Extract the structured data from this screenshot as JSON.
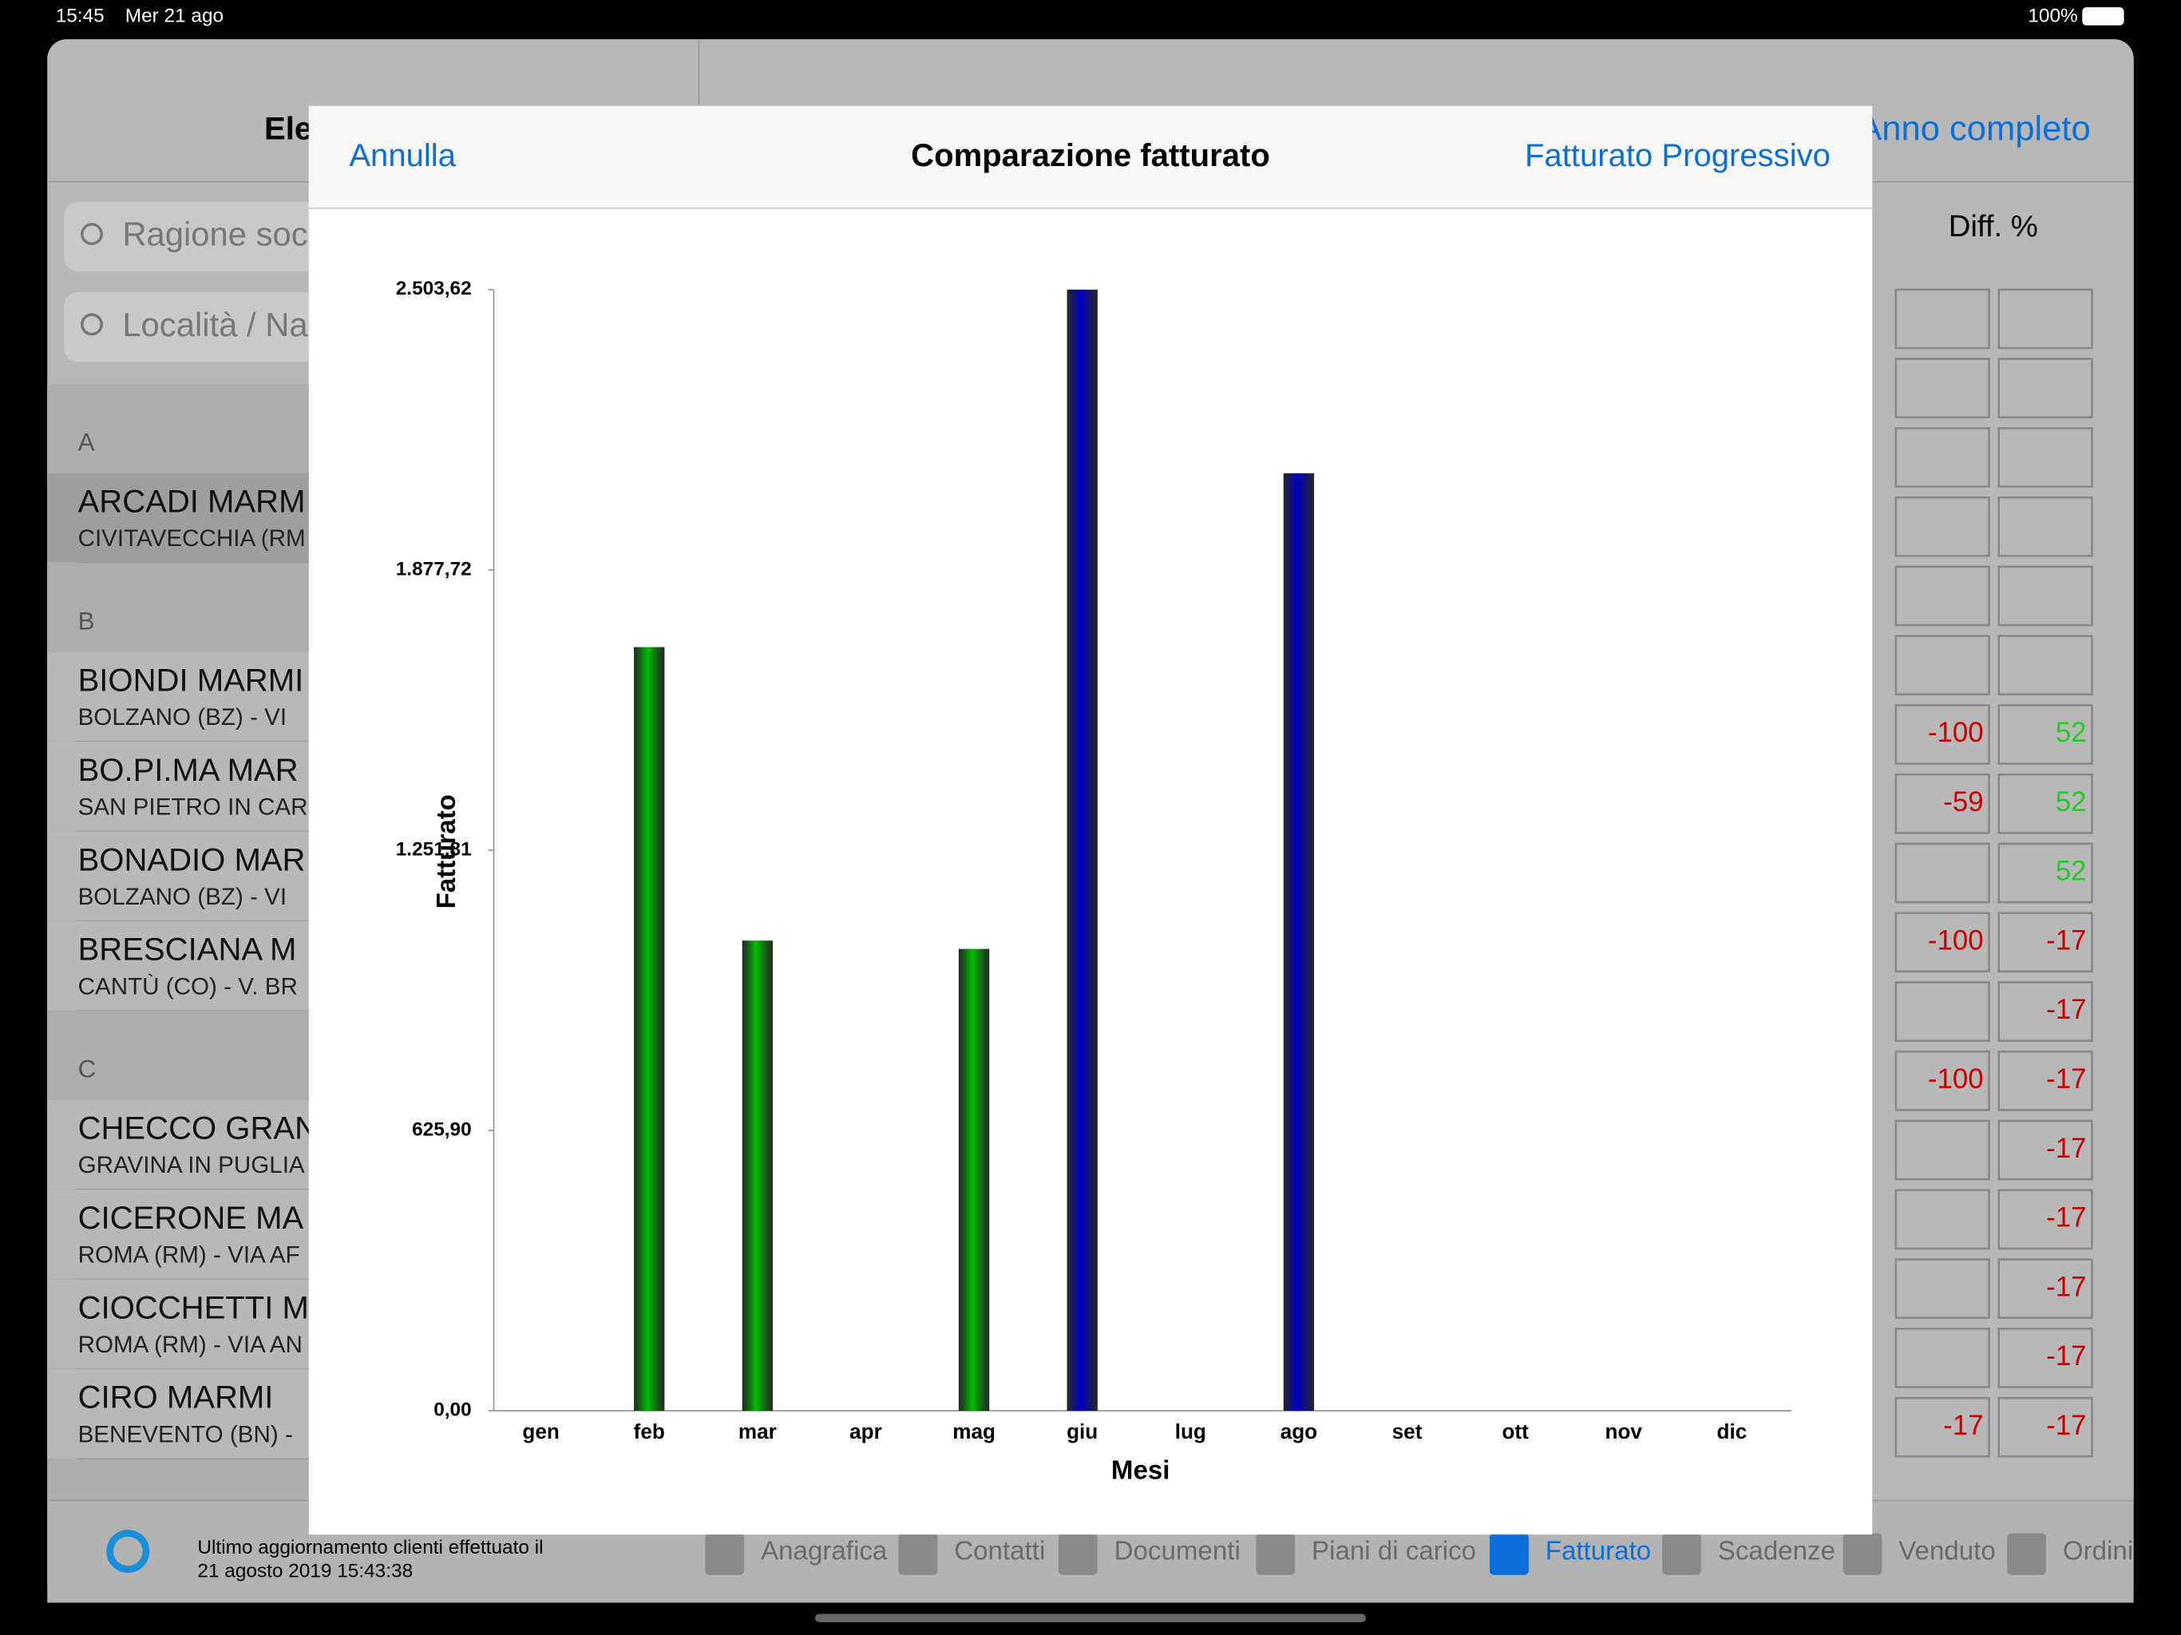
{
  "status_bar": {
    "time": "15:45",
    "date": "Mer 21 ago",
    "battery": "100%"
  },
  "sidebar": {
    "title": "Ele",
    "search_placeholders": [
      "Ragione soc",
      "Località / Na"
    ],
    "sections": [
      {
        "letter": "A",
        "items": [
          {
            "name": "ARCADI MARM",
            "detail": "CIVITAVECCHIA (RM"
          }
        ]
      },
      {
        "letter": "B",
        "items": [
          {
            "name": "BIONDI MARMI",
            "detail": "BOLZANO (BZ) - VI"
          },
          {
            "name": "BO.PI.MA MAR",
            "detail": "SAN PIETRO IN CAR"
          },
          {
            "name": "BONADIO MAR",
            "detail": "BOLZANO (BZ) - VI"
          },
          {
            "name": "BRESCIANA M",
            "detail": "CANTÙ (CO) - V. BR"
          }
        ]
      },
      {
        "letter": "C",
        "items": [
          {
            "name": "CHECCO GRAN",
            "detail": "GRAVINA IN PUGLIA"
          },
          {
            "name": "CICERONE MA",
            "detail": "ROMA (RM) - VIA AF"
          },
          {
            "name": "CIOCCHETTI M",
            "detail": "ROMA (RM) - VIA AN"
          },
          {
            "name": "CIRO MARMI",
            "detail": "BENEVENTO (BN) -"
          }
        ]
      }
    ]
  },
  "detail_panel": {
    "period": "Anno completo",
    "column_header": "Diff. %",
    "rows": [
      [
        null,
        null
      ],
      [
        null,
        null
      ],
      [
        null,
        null
      ],
      [
        null,
        null
      ],
      [
        null,
        null
      ],
      [
        null,
        null
      ],
      [
        -100,
        52
      ],
      [
        -59,
        52
      ],
      [
        null,
        52
      ],
      [
        -100,
        -17
      ],
      [
        null,
        -17
      ],
      [
        -100,
        -17
      ],
      [
        null,
        -17
      ],
      [
        null,
        -17
      ],
      [
        null,
        -17
      ],
      [
        null,
        -17
      ],
      [
        -17,
        -17
      ]
    ]
  },
  "footer": {
    "sync_line1": "Ultimo aggiornamento clienti effettuato il",
    "sync_line2": "21 agosto 2019 15:43:38",
    "tabs": [
      "Anagrafica",
      "Contatti",
      "Documenti",
      "Piani di carico",
      "Fatturato",
      "Scadenze",
      "Venduto",
      "Ordini"
    ],
    "active_tab": "Fatturato"
  },
  "modal": {
    "cancel": "Annulla",
    "action": "Fatturato Progressivo"
  },
  "chart_data": {
    "type": "bar",
    "title": "Comparazione fatturato",
    "x_label": "Mesi",
    "y_label": "Fatturato",
    "categories": [
      "gen",
      "feb",
      "mar",
      "apr",
      "mag",
      "giu",
      "lug",
      "ago",
      "set",
      "ott",
      "nov",
      "dic"
    ],
    "values": [
      0,
      1705.3,
      1049.9,
      0,
      1031.3,
      2503.62,
      0,
      2093.6,
      0,
      0,
      0,
      0
    ],
    "colors": [
      "#00c000",
      "#00c000",
      "#00c000",
      "#00c000",
      "#00c000",
      "#0000c8",
      "#0000c8",
      "#0000c8",
      "#0000c8",
      "#0000c8",
      "#0000c8",
      "#0000c8"
    ],
    "ylim": [
      0,
      2503.62
    ],
    "yticks": [
      {
        "value": 0,
        "label": "0,00"
      },
      {
        "value": 625.9,
        "label": "625,90"
      },
      {
        "value": 1251.81,
        "label": "1.251,81"
      },
      {
        "value": 1877.72,
        "label": "1.877,72"
      },
      {
        "value": 2503.62,
        "label": "2.503,62"
      }
    ]
  }
}
